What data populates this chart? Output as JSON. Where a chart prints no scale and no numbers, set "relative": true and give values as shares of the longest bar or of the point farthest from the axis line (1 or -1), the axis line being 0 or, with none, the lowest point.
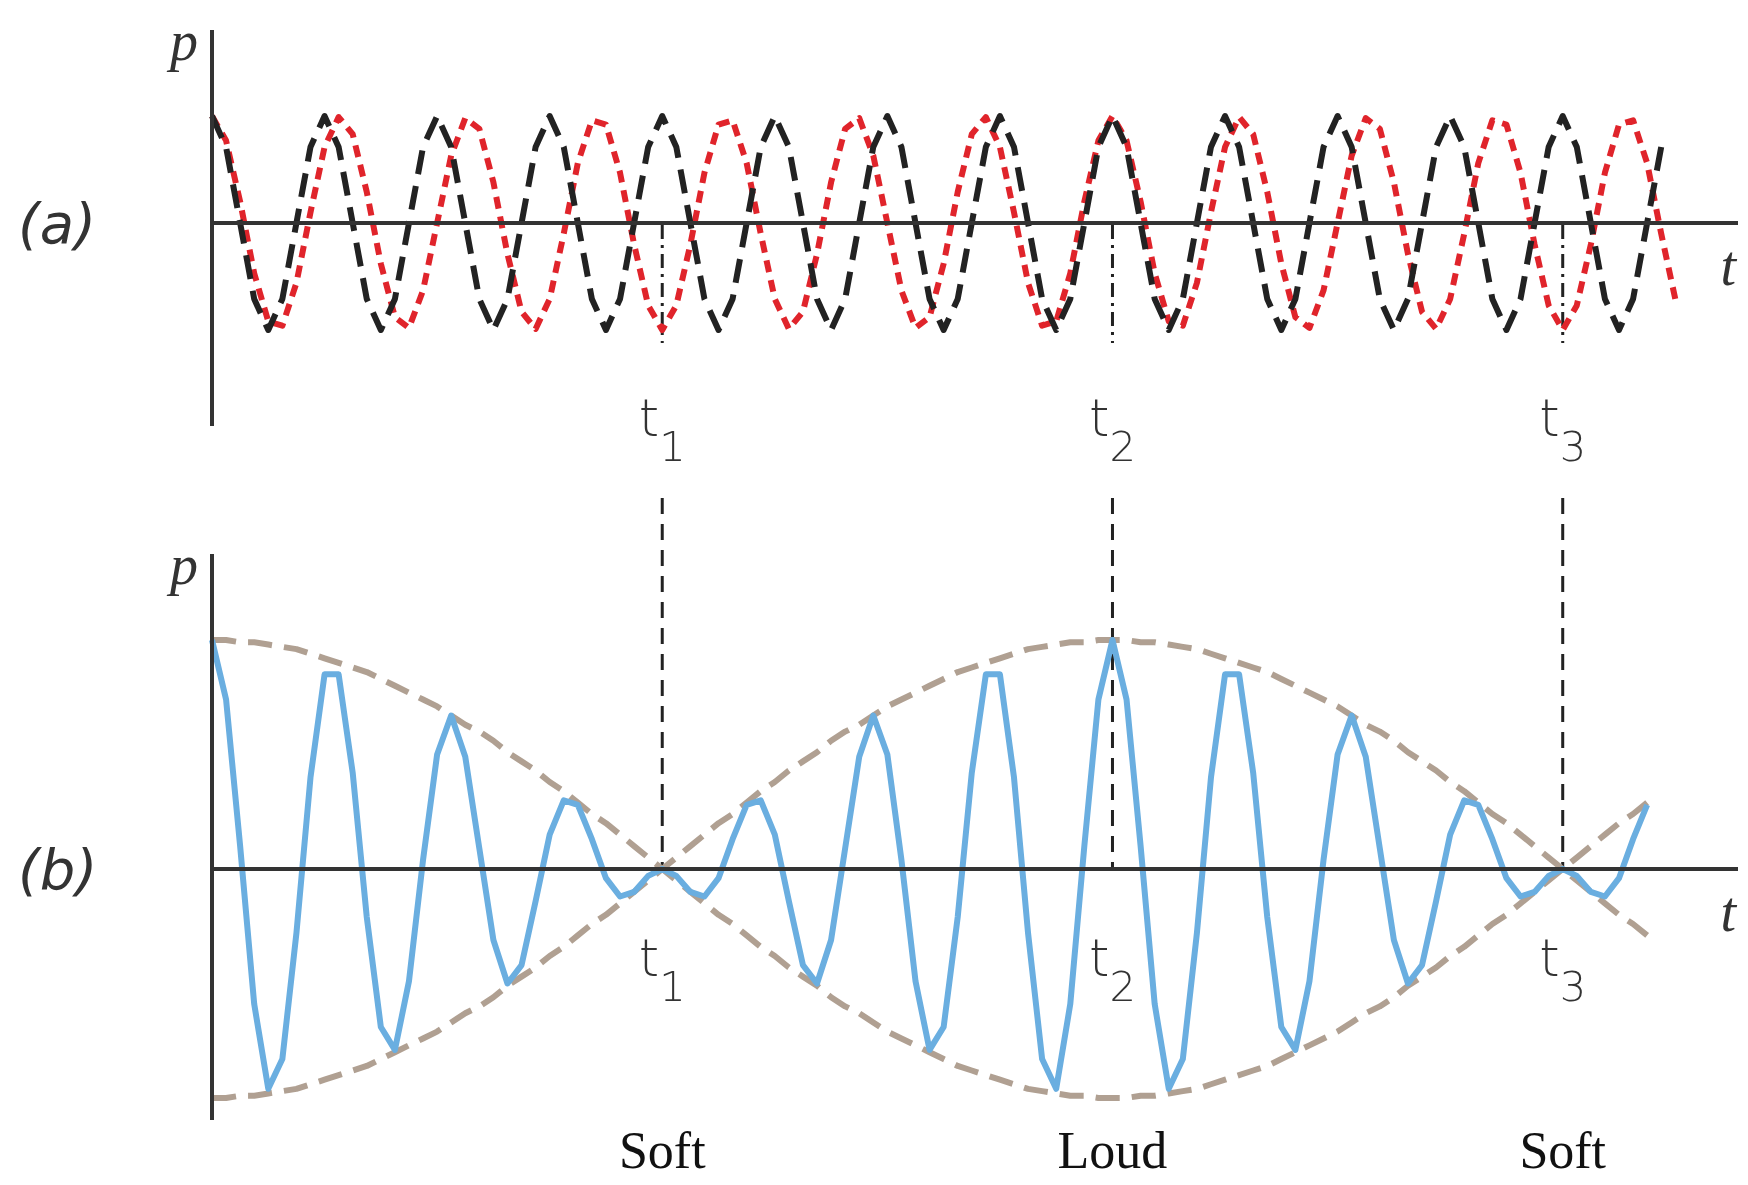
{
  "chart_data": [
    {
      "type": "line",
      "title": "(a)",
      "xlabel": "t",
      "ylabel": "p",
      "relative": true,
      "tick_labels": "x",
      "categories": [
        null,
        null,
        null,
        null,
        null,
        null,
        null,
        null,
        null,
        null,
        null,
        null,
        null,
        null,
        null,
        null,
        null,
        null,
        null,
        null,
        null,
        null,
        null,
        null,
        null,
        null,
        null,
        null,
        null,
        null,
        null,
        null,
        "t$_{1}$",
        null,
        null,
        null,
        null,
        null,
        null,
        null,
        null,
        null,
        null,
        null,
        null,
        null,
        null,
        null,
        null,
        null,
        null,
        null,
        null,
        null,
        null,
        null,
        null,
        null,
        null,
        null,
        null,
        null,
        null,
        null,
        "t$_{2}$",
        null,
        null,
        null,
        null,
        null,
        null,
        null,
        null,
        null,
        null,
        null,
        null,
        null,
        null,
        null,
        null,
        null,
        null,
        null,
        null,
        null,
        null,
        null,
        null,
        null,
        null,
        null,
        null,
        null,
        null,
        null,
        "t$_{3}$",
        null,
        null,
        null,
        null,
        null,
        null,
        null,
        null
      ],
      "ref_lines": [
        {
          "axis": "x",
          "value": "t$_{1}$",
          "color": "#222222",
          "line_style": "dotted"
        },
        {
          "axis": "x",
          "value": "t$_{2}$",
          "color": "#222222",
          "line_style": "dotted"
        },
        {
          "axis": "x",
          "value": "t$_{3}$",
          "color": "#222222",
          "line_style": "dotted"
        }
      ],
      "series": [
        {
          "color": "#e0242b",
          "line_style": "dotted",
          "values": [
            1,
            0.77,
            0.2,
            -0.47,
            -0.92,
            -0.96,
            -0.56,
            0.1,
            0.71,
            0.99,
            0.83,
            0.29,
            -0.38,
            -0.88,
            -0.98,
            -0.63,
            0,
            0.63,
            0.98,
            0.88,
            0.38,
            -0.29,
            -0.83,
            -0.99,
            -0.71,
            -0.1,
            0.56,
            0.96,
            0.92,
            0.47,
            -0.2,
            -0.77,
            -1,
            -0.77,
            -0.2,
            0.47,
            0.92,
            0.96,
            0.56,
            -0.1,
            -0.71,
            -0.99,
            -0.83,
            -0.29,
            0.38,
            0.88,
            0.98,
            0.63,
            0,
            -0.63,
            -0.98,
            -0.88,
            -0.38,
            0.29,
            0.83,
            0.99,
            0.71,
            0.1,
            -0.56,
            -0.96,
            -0.92,
            -0.47,
            0.2,
            0.77,
            1,
            0.77,
            0.2,
            -0.47,
            -0.92,
            -0.96,
            -0.56,
            0.1,
            0.71,
            0.99,
            0.83,
            0.29,
            -0.38,
            -0.88,
            -0.98,
            -0.63,
            0,
            0.63,
            0.98,
            0.88,
            0.38,
            -0.29,
            -0.83,
            -0.99,
            -0.71,
            -0.1,
            0.56,
            0.96,
            0.92,
            0.47,
            -0.2,
            -0.77,
            -1,
            -0.77,
            -0.2,
            0.47,
            0.92,
            0.96,
            0.56,
            -0.1,
            -0.71
          ]
        },
        {
          "color": "#222222",
          "line_style": "dashed",
          "values": [
            1,
            0.71,
            0,
            -0.71,
            -1,
            -0.71,
            0,
            0.71,
            1,
            0.71,
            0,
            -0.71,
            -1,
            -0.71,
            0,
            0.71,
            1,
            0.71,
            0,
            -0.71,
            -1,
            -0.71,
            0,
            0.71,
            1,
            0.71,
            0,
            -0.71,
            -1,
            -0.71,
            0,
            0.71,
            1,
            0.71,
            0,
            -0.71,
            -1,
            -0.71,
            0,
            0.71,
            1,
            0.71,
            0,
            -0.71,
            -1,
            -0.71,
            0,
            0.71,
            1,
            0.71,
            0,
            -0.71,
            -1,
            -0.71,
            0,
            0.71,
            1,
            0.71,
            0,
            -0.71,
            -1,
            -0.71,
            0,
            0.71,
            1,
            0.71,
            0,
            -0.71,
            -1,
            -0.71,
            0,
            0.71,
            1,
            0.71,
            0,
            -0.71,
            -1,
            -0.71,
            0,
            0.71,
            1,
            0.71,
            0,
            -0.71,
            -1,
            -0.71,
            0,
            0.71,
            1,
            0.71,
            0,
            -0.71,
            -1,
            -0.71,
            0,
            0.71,
            1,
            0.71,
            0,
            -0.71,
            -1,
            -0.71,
            0,
            0.71,
            null
          ]
        }
      ]
    },
    {
      "type": "line",
      "title": "(b)",
      "xlabel": "t",
      "ylabel": "p",
      "relative": true,
      "tick_labels": "x",
      "categories": [
        null,
        null,
        null,
        null,
        null,
        null,
        null,
        null,
        null,
        null,
        null,
        null,
        null,
        null,
        null,
        null,
        null,
        null,
        null,
        null,
        null,
        null,
        null,
        null,
        null,
        null,
        null,
        null,
        null,
        null,
        null,
        null,
        "t$_{1}$",
        null,
        null,
        null,
        null,
        null,
        null,
        null,
        null,
        null,
        null,
        null,
        null,
        null,
        null,
        null,
        null,
        null,
        null,
        null,
        null,
        null,
        null,
        null,
        null,
        null,
        null,
        null,
        null,
        null,
        null,
        null,
        "t$_{2}$",
        null,
        null,
        null,
        null,
        null,
        null,
        null,
        null,
        null,
        null,
        null,
        null,
        null,
        null,
        null,
        null,
        null,
        null,
        null,
        null,
        null,
        null,
        null,
        null,
        null,
        null,
        null,
        null,
        null,
        null,
        null,
        "t$_{3}$",
        null,
        null,
        null,
        null,
        null,
        null,
        null,
        null
      ],
      "ref_lines": [
        {
          "axis": "x",
          "value": "t$_{1}$",
          "color": "#222222",
          "line_style": "dashed"
        },
        {
          "axis": "x",
          "value": "t$_{2}$",
          "color": "#222222",
          "line_style": "dashed"
        },
        {
          "axis": "x",
          "value": "t$_{3}$",
          "color": "#222222",
          "line_style": "dashed"
        }
      ],
      "annotations": [
        "Soft",
        "Loud",
        "Soft"
      ],
      "series": [
        {
          "color": "#b0a092",
          "line_style": "dashed",
          "values": [
            1,
            1,
            0.99,
            0.99,
            0.98,
            0.97,
            0.96,
            0.94,
            0.92,
            0.9,
            0.88,
            0.86,
            0.83,
            0.8,
            0.77,
            0.74,
            0.71,
            0.67,
            0.63,
            0.6,
            0.56,
            0.51,
            0.47,
            0.43,
            0.38,
            0.34,
            0.29,
            0.24,
            0.2,
            0.15,
            0.1,
            0.05,
            0,
            -0.05,
            -0.1,
            -0.15,
            -0.2,
            -0.24,
            -0.29,
            -0.34,
            -0.38,
            -0.43,
            -0.47,
            -0.51,
            -0.56,
            -0.6,
            -0.63,
            -0.67,
            -0.71,
            -0.74,
            -0.77,
            -0.8,
            -0.83,
            -0.86,
            -0.88,
            -0.9,
            -0.92,
            -0.94,
            -0.96,
            -0.97,
            -0.98,
            -0.99,
            -0.99,
            -1,
            -1,
            -1,
            -0.99,
            -0.99,
            -0.98,
            -0.97,
            -0.96,
            -0.94,
            -0.92,
            -0.9,
            -0.88,
            -0.86,
            -0.83,
            -0.8,
            -0.77,
            -0.74,
            -0.71,
            -0.67,
            -0.63,
            -0.6,
            -0.56,
            -0.51,
            -0.47,
            -0.43,
            -0.38,
            -0.34,
            -0.29,
            -0.24,
            -0.2,
            -0.15,
            -0.1,
            -0.05,
            0,
            0.05,
            0.1,
            0.15,
            0.2,
            0.24,
            0.29,
            null,
            null
          ]
        },
        {
          "color": "#b0a092",
          "line_style": "dashed",
          "values": [
            -1,
            -1,
            -0.99,
            -0.99,
            -0.98,
            -0.97,
            -0.96,
            -0.94,
            -0.92,
            -0.9,
            -0.88,
            -0.86,
            -0.83,
            -0.8,
            -0.77,
            -0.74,
            -0.71,
            -0.67,
            -0.63,
            -0.6,
            -0.56,
            -0.51,
            -0.47,
            -0.43,
            -0.38,
            -0.34,
            -0.29,
            -0.24,
            -0.2,
            -0.15,
            -0.1,
            -0.05,
            0,
            0.05,
            0.1,
            0.15,
            0.2,
            0.24,
            0.29,
            0.34,
            0.38,
            0.43,
            0.47,
            0.51,
            0.56,
            0.6,
            0.63,
            0.67,
            0.71,
            0.74,
            0.77,
            0.8,
            0.83,
            0.86,
            0.88,
            0.9,
            0.92,
            0.94,
            0.96,
            0.97,
            0.98,
            0.99,
            0.99,
            1,
            1,
            1,
            0.99,
            0.99,
            0.98,
            0.97,
            0.96,
            0.94,
            0.92,
            0.9,
            0.88,
            0.86,
            0.83,
            0.8,
            0.77,
            0.74,
            0.71,
            0.67,
            0.63,
            0.6,
            0.56,
            0.51,
            0.47,
            0.43,
            0.38,
            0.34,
            0.29,
            0.24,
            0.2,
            0.15,
            0.1,
            0.05,
            0,
            -0.05,
            -0.1,
            -0.15,
            -0.2,
            -0.24,
            -0.29,
            null,
            null
          ]
        },
        {
          "color": "#6aaee0",
          "line_style": "solid",
          "values": [
            1,
            0.74,
            0.1,
            -0.59,
            -0.96,
            -0.83,
            -0.28,
            0.4,
            0.85,
            0.85,
            0.42,
            -0.21,
            -0.69,
            -0.79,
            -0.49,
            0.04,
            0.5,
            0.67,
            0.49,
            0.09,
            -0.31,
            -0.5,
            -0.42,
            -0.14,
            0.15,
            0.3,
            0.28,
            0.13,
            -0.04,
            -0.12,
            -0.1,
            -0.03,
            0,
            -0.03,
            -0.1,
            -0.12,
            -0.04,
            0.13,
            0.28,
            0.3,
            0.15,
            -0.14,
            -0.42,
            -0.5,
            -0.31,
            0.09,
            0.49,
            0.67,
            0.5,
            0.04,
            -0.49,
            -0.79,
            -0.69,
            -0.21,
            0.42,
            0.85,
            0.85,
            0.4,
            -0.28,
            -0.83,
            -0.96,
            -0.59,
            0.1,
            0.74,
            1,
            0.74,
            0.1,
            -0.59,
            -0.96,
            -0.83,
            -0.28,
            0.4,
            0.85,
            0.85,
            0.42,
            -0.21,
            -0.69,
            -0.79,
            -0.49,
            0.04,
            0.5,
            0.67,
            0.49,
            0.09,
            -0.31,
            -0.5,
            -0.42,
            -0.14,
            0.15,
            0.3,
            0.28,
            0.13,
            -0.04,
            -0.12,
            -0.1,
            -0.03,
            0,
            -0.03,
            -0.1,
            -0.12,
            -0.04,
            0.13,
            0.28,
            null,
            null
          ]
        }
      ]
    }
  ]
}
